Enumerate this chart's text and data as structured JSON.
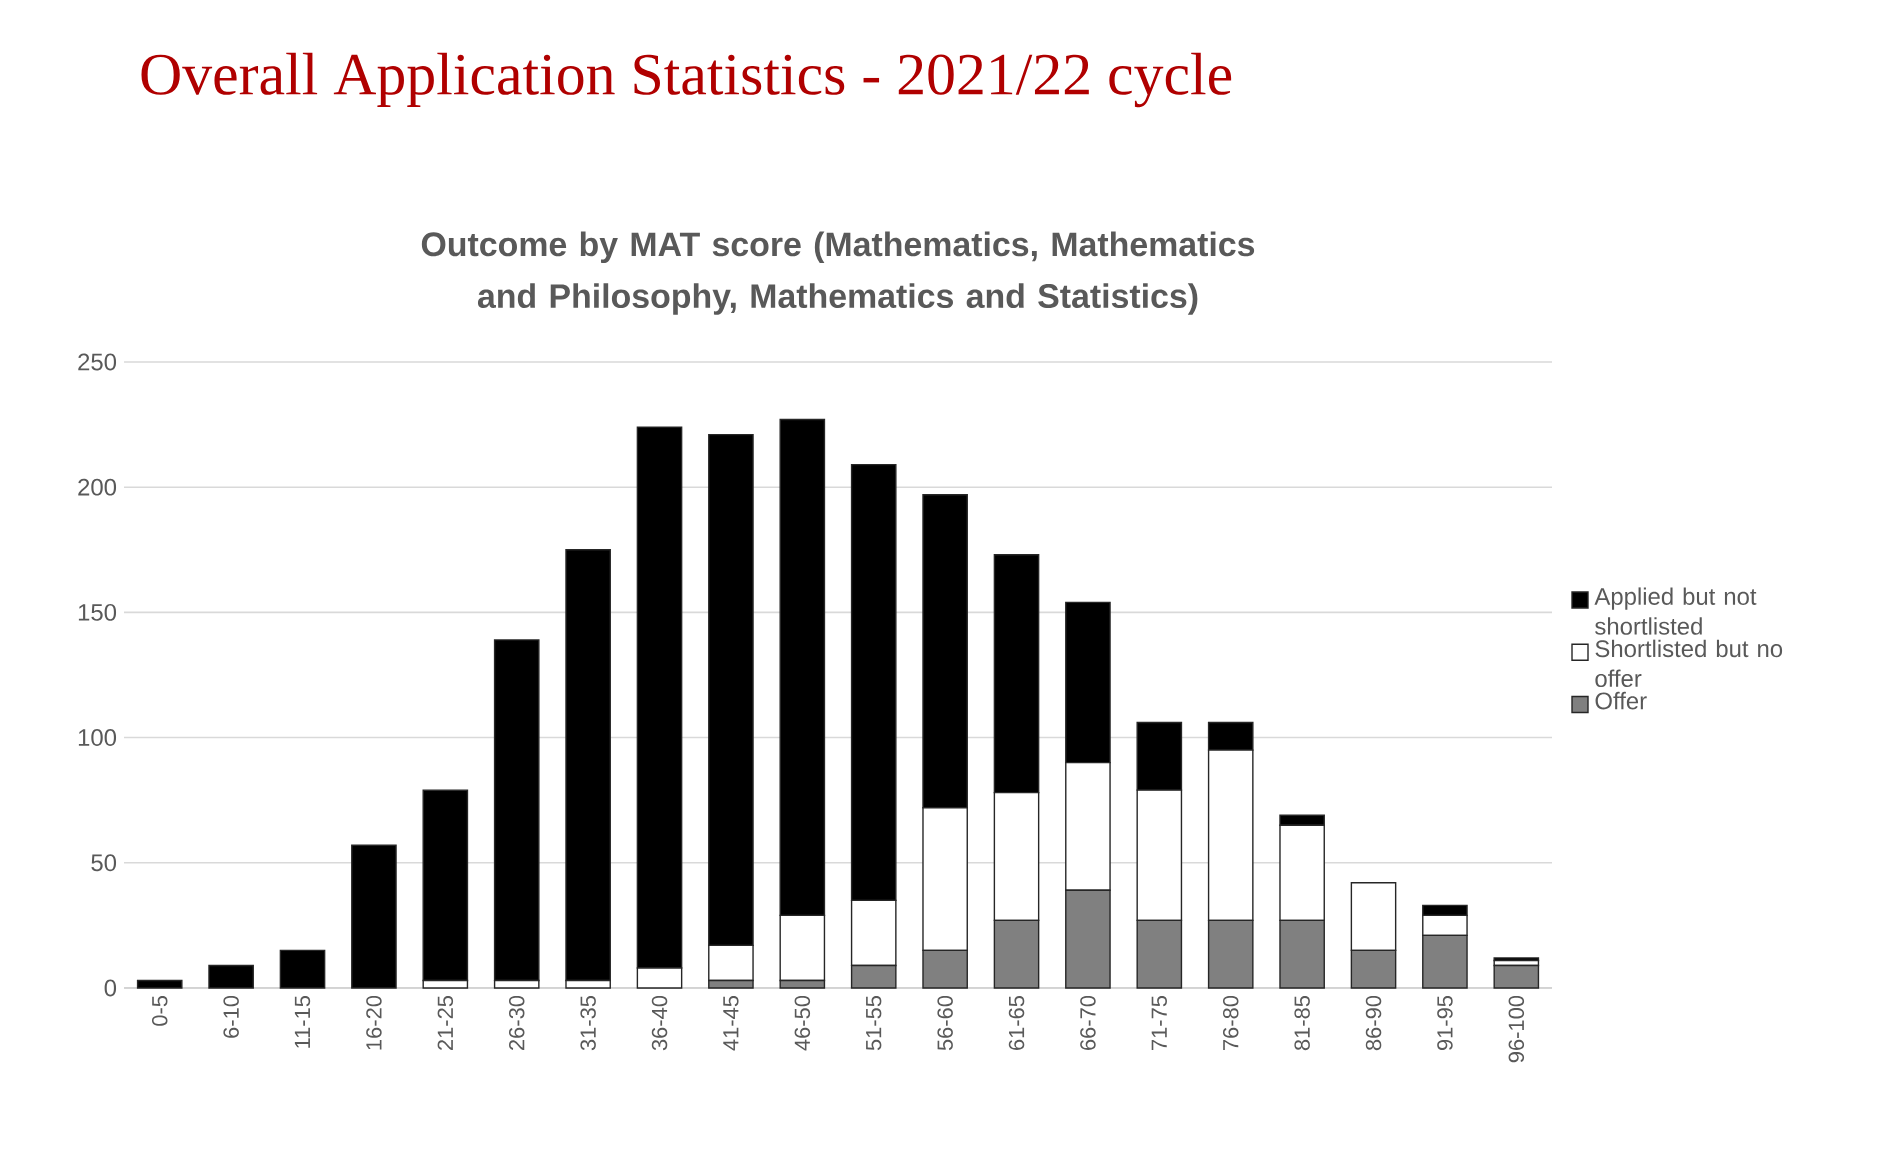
{
  "chart_data": {
    "type": "bar",
    "title": "Overall Application Statistics - 2021/22 cycle",
    "subtitle": "Outcome by MAT score (Mathematics, Mathematics and Philosophy, Mathematics and Statistics)",
    "categories": [
      "0-5",
      "6-10",
      "11-15",
      "16-20",
      "21-25",
      "26-30",
      "31-35",
      "36-40",
      "41-45",
      "46-50",
      "51-55",
      "56-60",
      "61-65",
      "66-70",
      "71-75",
      "76-80",
      "81-85",
      "86-90",
      "91-95",
      "96-100"
    ],
    "stacked": true,
    "series": [
      {
        "name": "Offer",
        "color": "#808080",
        "values": [
          0,
          0,
          0,
          0,
          0,
          0,
          0,
          0,
          3,
          3,
          9,
          15,
          27,
          39,
          27,
          27,
          27,
          15,
          21,
          9
        ]
      },
      {
        "name": "Shortlisted but no offer",
        "color": "#ffffff",
        "values": [
          0,
          0,
          0,
          0,
          3,
          3,
          3,
          8,
          14,
          26,
          26,
          57,
          51,
          51,
          52,
          68,
          38,
          27,
          8,
          2
        ]
      },
      {
        "name": "Applied but not shortlisted",
        "color": "#000000",
        "values": [
          3,
          9,
          15,
          57,
          76,
          136,
          172,
          216,
          204,
          198,
          174,
          125,
          95,
          64,
          27,
          11,
          4,
          0,
          4,
          1
        ]
      }
    ],
    "ylim": [
      0,
      250
    ],
    "yticks": [
      0,
      50,
      100,
      150,
      200,
      250
    ],
    "grid": "y",
    "legend": "right"
  }
}
